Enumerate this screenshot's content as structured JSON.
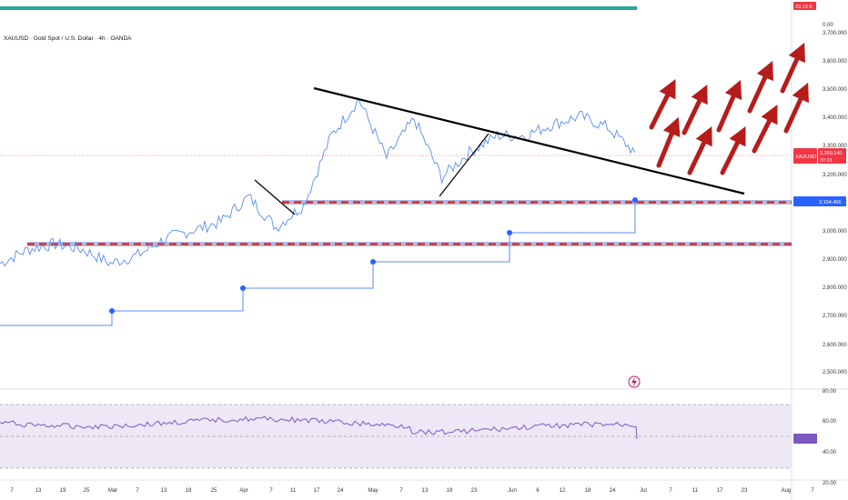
{
  "title": "XAUUSD · Gold Spot / U.S. Dollar · 4h · OANDA",
  "volume_badge": "29.18 K",
  "volume_axis_zero": "0.00",
  "price_axis": [
    "3,700.000",
    "3,600.000",
    "3,500.000",
    "3,400.000",
    "3,300.000",
    "3,200.000",
    "3,000.000",
    "2,900.000",
    "2,800.000",
    "2,700.000",
    "2,600.000",
    "2,500.000"
  ],
  "symbol_badge": "XAUUSD",
  "price_badge": "3,269.140",
  "countdown_badge": "37:01",
  "level_badge": "3,104.466",
  "rsi_axis": [
    "80.00",
    "60.00",
    "40.00",
    "20.00"
  ],
  "rsi_badge": "48.09",
  "x_ticks": [
    "7",
    "13",
    "19",
    "25",
    "Mar",
    "7",
    "13",
    "19",
    "25",
    "Apr",
    "7",
    "11",
    "17",
    "24",
    "May",
    "7",
    "13",
    "19",
    "23",
    "Jun",
    "6",
    "12",
    "18",
    "24",
    "Jul",
    "7",
    "11",
    "17",
    "23",
    "Aug",
    "7"
  ],
  "lightning_icon": "lightning-icon",
  "colors": {
    "price_line": "#5b8def",
    "support_red": "#d32f2f",
    "support_band": "#9fa8da",
    "trendline": "#000000",
    "arrow": "#b71c1c",
    "rsi_line": "#7e57c2",
    "rsi_band": "#ede7f6",
    "volume": "#26a69a",
    "level_badge": "#2962ff",
    "price_badge": "#f23645"
  },
  "chart_data": {
    "type": "line",
    "x": [
      "7",
      "13",
      "19",
      "25",
      "Mar",
      "7",
      "13",
      "19",
      "25",
      "Apr",
      "7",
      "11",
      "17",
      "24",
      "May",
      "7",
      "13",
      "19",
      "23",
      "Jun",
      "6",
      "12",
      "18",
      "24"
    ],
    "series": [
      {
        "values": [
          2870,
          2920,
          2940,
          2920,
          2870,
          2900,
          2960,
          2990,
          3020,
          3110,
          3000,
          3080,
          3330,
          3460,
          3250,
          3390,
          3180,
          3270,
          3330,
          3330,
          3370,
          3400,
          3360,
          3269
        ]
      }
    ],
    "support_levels": [
      3104.466,
      2950
    ],
    "rsi_last": 48.09,
    "ylim": [
      2470,
      3720
    ]
  }
}
